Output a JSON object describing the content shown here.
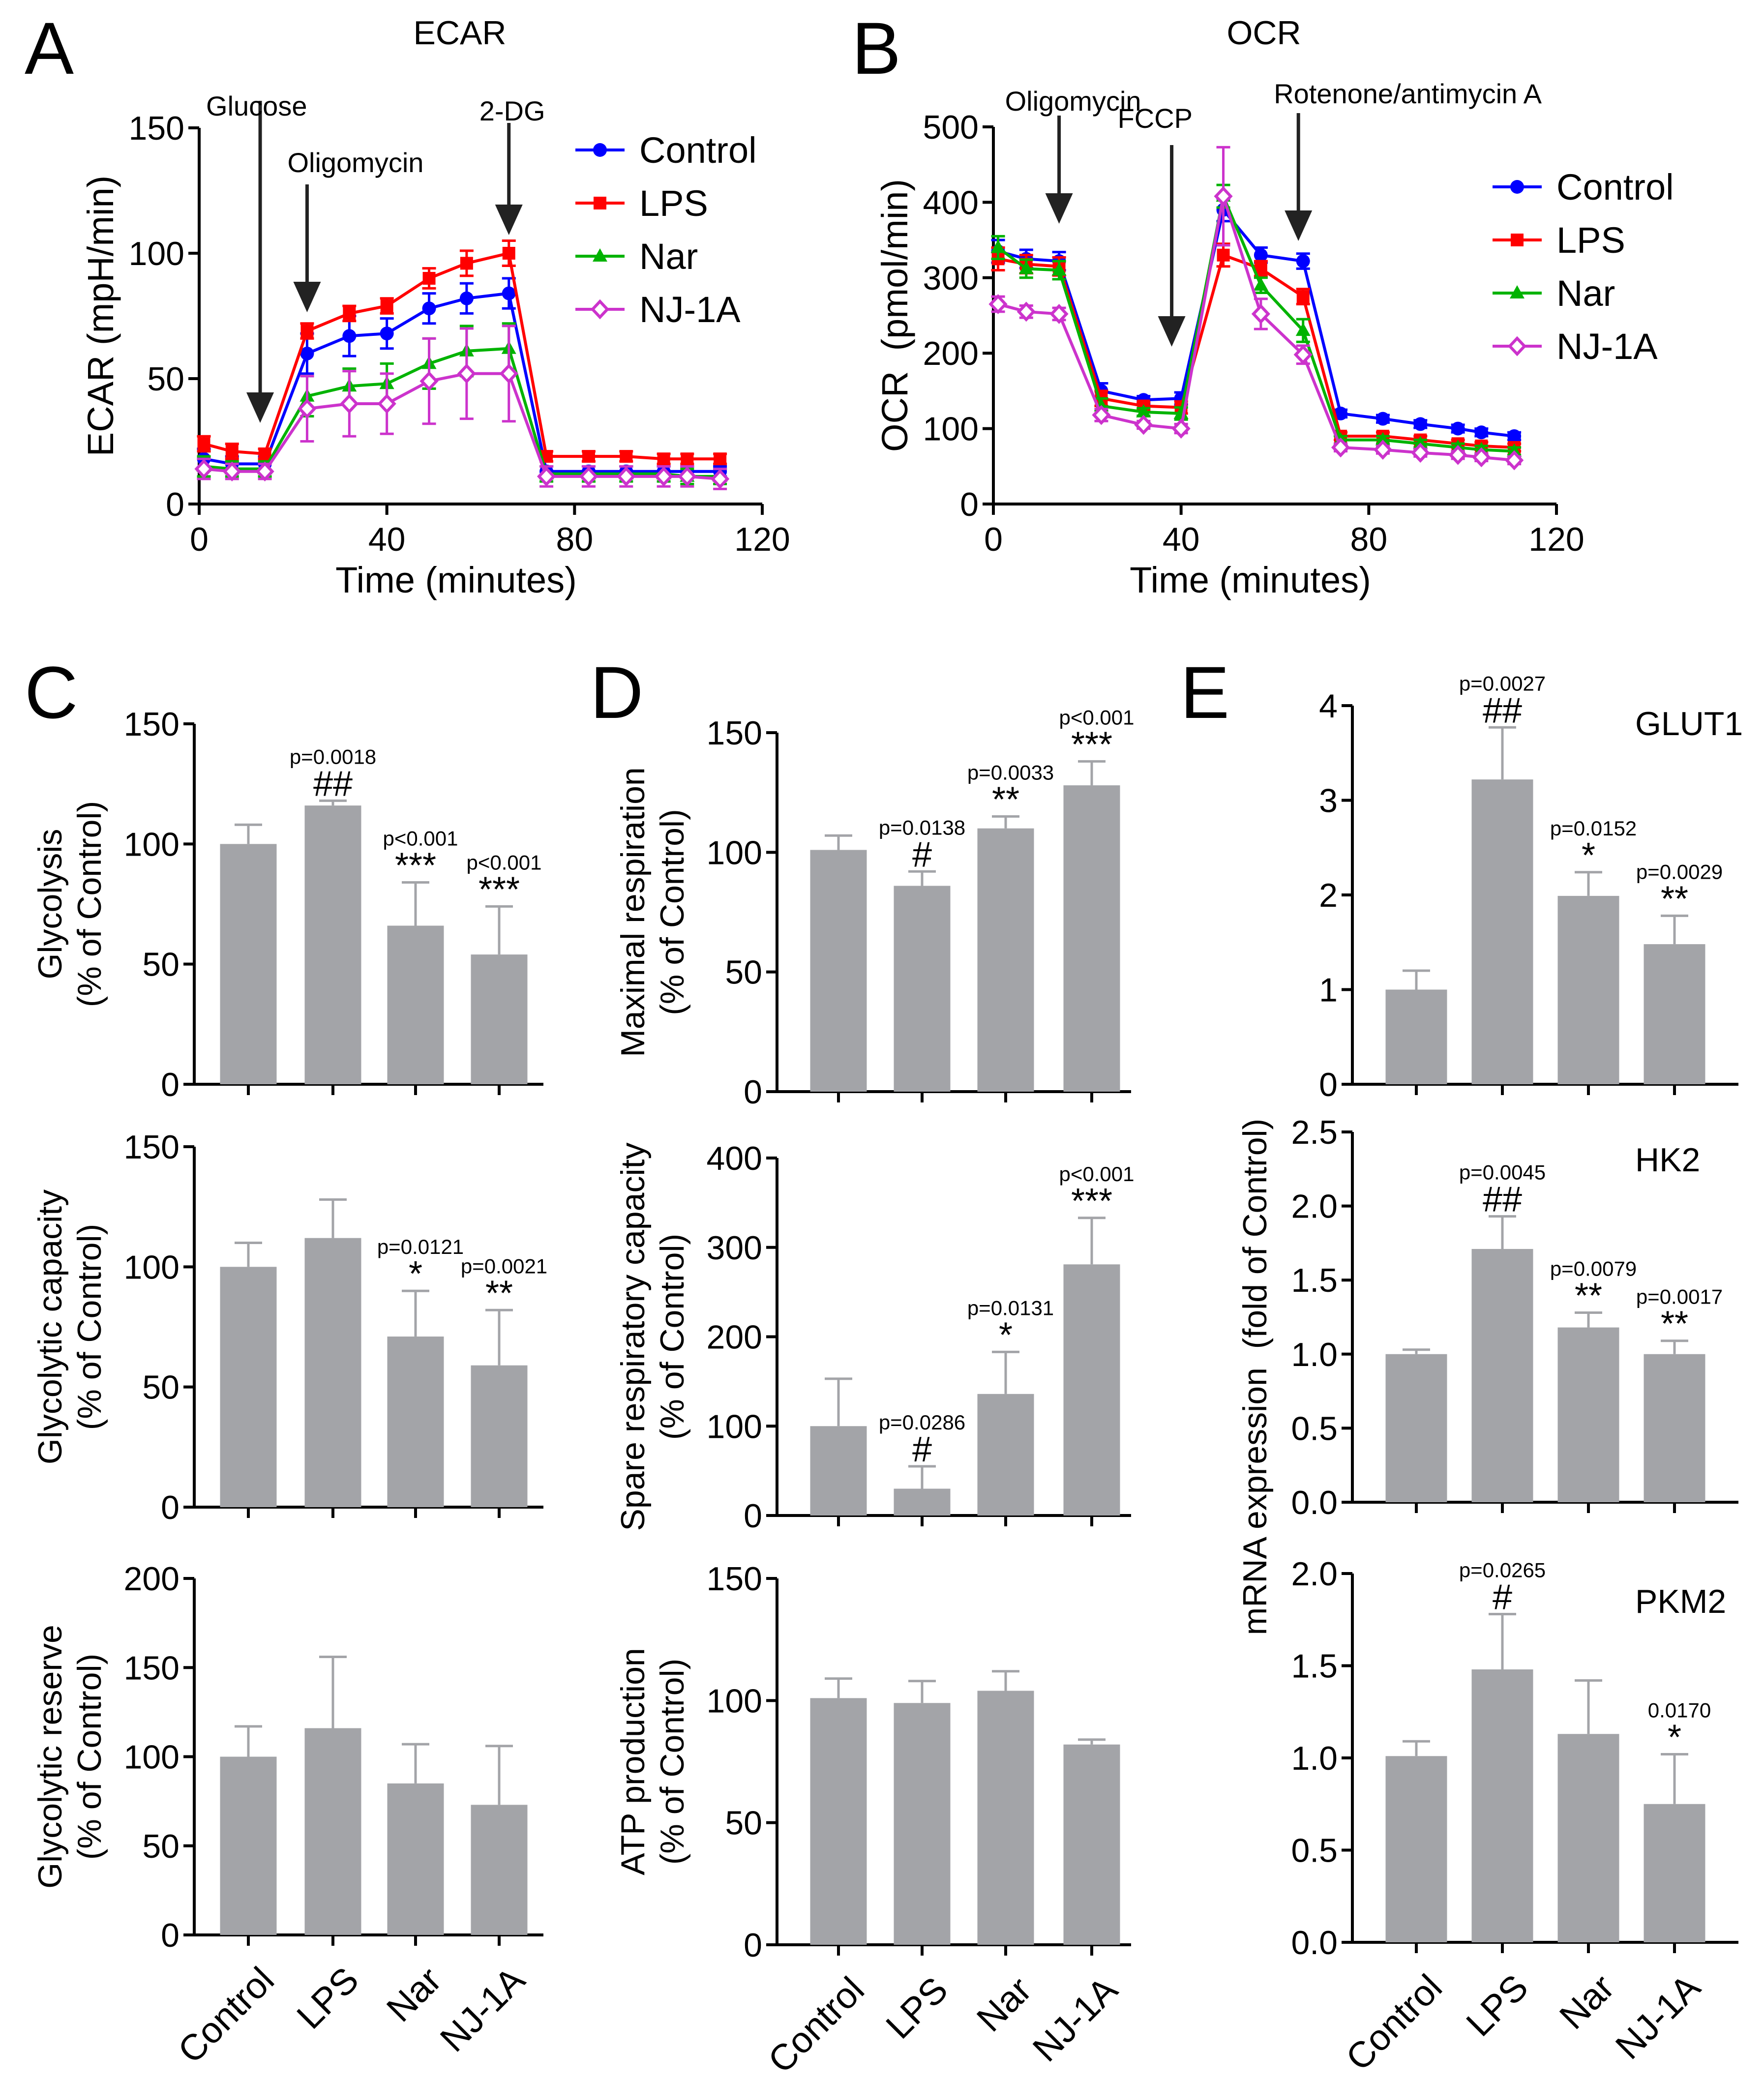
{
  "panels": {
    "A": {
      "letter": "A",
      "title": "ECAR"
    },
    "B": {
      "letter": "B",
      "title": "OCR"
    },
    "C": {
      "letter": "C"
    },
    "D": {
      "letter": "D"
    },
    "E": {
      "letter": "E"
    }
  },
  "colors": {
    "Control": "#0000ff",
    "LPS": "#ff0000",
    "Nar": "#00b300",
    "NJ-1A": "#cc33cc",
    "bar": "#a3a4a8",
    "arrow": "#222222"
  },
  "chart_data": [
    {
      "id": "A",
      "type": "line",
      "title": "ECAR",
      "xlabel": "Time (minutes)",
      "ylabel": "ECAR (mpH/min)",
      "xlim": [
        0,
        120
      ],
      "ylim": [
        0,
        150
      ],
      "xticks": [
        0,
        40,
        80,
        120
      ],
      "yticks": [
        0,
        50,
        100,
        150
      ],
      "x": [
        1,
        7,
        14,
        23,
        32,
        40,
        49,
        57,
        66,
        74,
        83,
        91,
        99,
        104,
        111
      ],
      "series": [
        {
          "name": "Control",
          "marker": "circle",
          "values": [
            18,
            16,
            16,
            60,
            67,
            68,
            78,
            82,
            84,
            13,
            13,
            13,
            13,
            13,
            13
          ],
          "errors": [
            4,
            3,
            3,
            8,
            8,
            6,
            6,
            6,
            6,
            2,
            2,
            2,
            2,
            2,
            2
          ]
        },
        {
          "name": "LPS",
          "marker": "square",
          "values": [
            24,
            21,
            20,
            69,
            76,
            79,
            90,
            96,
            100,
            19,
            19,
            19,
            18,
            18,
            18
          ],
          "errors": [
            3,
            3,
            2,
            3,
            3,
            3,
            4,
            5,
            5,
            2,
            2,
            2,
            2,
            2,
            2
          ]
        },
        {
          "name": "Nar",
          "marker": "triangle",
          "values": [
            15,
            14,
            14,
            43,
            47,
            48,
            56,
            61,
            62,
            12,
            12,
            12,
            12,
            11,
            11
          ],
          "errors": [
            4,
            3,
            3,
            8,
            7,
            8,
            10,
            10,
            10,
            3,
            3,
            3,
            3,
            3,
            3
          ]
        },
        {
          "name": "NJ-1A",
          "marker": "diamond",
          "values": [
            14,
            13,
            13,
            38,
            40,
            40,
            49,
            52,
            52,
            11,
            11,
            11,
            11,
            11,
            10
          ],
          "errors": [
            4,
            3,
            3,
            13,
            13,
            12,
            17,
            18,
            19,
            4,
            4,
            4,
            4,
            4,
            4
          ]
        }
      ],
      "annotations": [
        {
          "label": "Glucose",
          "x": 13
        },
        {
          "label": "Oligomycin",
          "x": 23
        },
        {
          "label": "2-DG",
          "x": 66
        }
      ]
    },
    {
      "id": "B",
      "type": "line",
      "title": "OCR",
      "xlabel": "Time (minutes)",
      "ylabel": "OCR  (pmol/min)",
      "xlim": [
        0,
        120
      ],
      "ylim": [
        0,
        500
      ],
      "xticks": [
        0,
        40,
        80,
        120
      ],
      "yticks": [
        0,
        100,
        200,
        300,
        400,
        500
      ],
      "x": [
        1,
        7,
        14,
        23,
        32,
        40,
        49,
        57,
        66,
        74,
        83,
        91,
        99,
        104,
        111
      ],
      "series": [
        {
          "name": "Control",
          "marker": "circle",
          "values": [
            335,
            325,
            322,
            150,
            138,
            140,
            390,
            330,
            322,
            120,
            113,
            106,
            100,
            95,
            90
          ],
          "errors": [
            15,
            12,
            12,
            10,
            5,
            8,
            15,
            10,
            10,
            5,
            5,
            5,
            5,
            5,
            5
          ]
        },
        {
          "name": "LPS",
          "marker": "square",
          "values": [
            325,
            318,
            315,
            140,
            130,
            128,
            330,
            312,
            275,
            90,
            90,
            85,
            80,
            77,
            75
          ],
          "errors": [
            15,
            12,
            12,
            10,
            5,
            8,
            15,
            10,
            10,
            5,
            5,
            5,
            5,
            5,
            5
          ]
        },
        {
          "name": "Nar",
          "marker": "triangle",
          "values": [
            340,
            312,
            310,
            130,
            122,
            120,
            408,
            290,
            230,
            85,
            85,
            80,
            75,
            72,
            70
          ],
          "errors": [
            15,
            12,
            12,
            10,
            5,
            8,
            15,
            10,
            15,
            5,
            5,
            5,
            5,
            5,
            5
          ]
        },
        {
          "name": "NJ-1A",
          "marker": "diamond",
          "values": [
            265,
            255,
            252,
            118,
            105,
            100,
            408,
            252,
            198,
            75,
            72,
            68,
            65,
            62,
            58
          ],
          "errors": [
            10,
            8,
            8,
            8,
            5,
            6,
            65,
            20,
            12,
            5,
            5,
            5,
            5,
            5,
            5
          ]
        }
      ],
      "annotations": [
        {
          "label": "Oligomycin",
          "x": 14
        },
        {
          "label": "FCCP",
          "x": 38
        },
        {
          "label": "Rotenone/antimycin A",
          "x": 65
        }
      ]
    },
    {
      "id": "C1",
      "type": "bar",
      "ylabel": "Glycolysis",
      "ylabel2": "(% of Control)",
      "categories": [
        "Control",
        "LPS",
        "Nar",
        "NJ-1A"
      ],
      "ylim": [
        0,
        150
      ],
      "yticks": [
        0,
        50,
        100,
        150
      ],
      "values": [
        100,
        116,
        66,
        54
      ],
      "errors": [
        8,
        2,
        18,
        20
      ],
      "marks": [
        "",
        "##",
        "***",
        "***"
      ],
      "pvalues": [
        "",
        "p=0.0018",
        "p<0.001",
        "p<0.001"
      ]
    },
    {
      "id": "C2",
      "type": "bar",
      "ylabel": "Glycolytic capacity",
      "ylabel2": "(% of Control)",
      "categories": [
        "Control",
        "LPS",
        "Nar",
        "NJ-1A"
      ],
      "ylim": [
        0,
        150
      ],
      "yticks": [
        0,
        50,
        100,
        150
      ],
      "values": [
        100,
        112,
        71,
        59
      ],
      "errors": [
        10,
        16,
        19,
        23
      ],
      "marks": [
        "",
        "",
        "*",
        "**"
      ],
      "pvalues": [
        "",
        "",
        "p=0.0121",
        "p=0.0021"
      ]
    },
    {
      "id": "C3",
      "type": "bar",
      "ylabel": "Glycolytic reserve",
      "ylabel2": "(% of Control)",
      "categories": [
        "Control",
        "LPS",
        "Nar",
        "NJ-1A"
      ],
      "ylim": [
        0,
        200
      ],
      "yticks": [
        0,
        50,
        100,
        150,
        200
      ],
      "values": [
        100,
        116,
        85,
        73
      ],
      "errors": [
        17,
        40,
        22,
        33
      ],
      "marks": [
        "",
        "",
        "",
        ""
      ],
      "pvalues": [
        "",
        "",
        "",
        ""
      ]
    },
    {
      "id": "D1",
      "type": "bar",
      "ylabel": "Maximal respiration",
      "ylabel2": "(% of Control)",
      "categories": [
        "Control",
        "LPS",
        "Nar",
        "NJ-1A"
      ],
      "ylim": [
        0,
        150
      ],
      "yticks": [
        0,
        50,
        100,
        150
      ],
      "values": [
        101,
        86,
        110,
        128
      ],
      "errors": [
        6,
        6,
        5,
        10
      ],
      "marks": [
        "",
        "#",
        "**",
        "***"
      ],
      "pvalues": [
        "",
        "p=0.0138",
        "p=0.0033",
        "p<0.001"
      ]
    },
    {
      "id": "D2",
      "type": "bar",
      "ylabel": "Spare respiratory capacity",
      "ylabel2": "(% of Control)",
      "categories": [
        "Control",
        "LPS",
        "Nar",
        "NJ-1A"
      ],
      "ylim": [
        0,
        400
      ],
      "yticks": [
        0,
        100,
        200,
        300,
        400
      ],
      "values": [
        100,
        30,
        136,
        281
      ],
      "errors": [
        53,
        25,
        47,
        52
      ],
      "marks": [
        "",
        "#",
        "*",
        "***"
      ],
      "pvalues": [
        "",
        "p=0.0286",
        "p=0.0131",
        "p<0.001"
      ]
    },
    {
      "id": "D3",
      "type": "bar",
      "ylabel": "ATP production",
      "ylabel2": "(% of Control)",
      "categories": [
        "Control",
        "LPS",
        "Nar",
        "NJ-1A"
      ],
      "ylim": [
        0,
        150
      ],
      "yticks": [
        0,
        50,
        100,
        150
      ],
      "values": [
        101,
        99,
        104,
        82
      ],
      "errors": [
        8,
        9,
        8,
        2
      ],
      "marks": [
        "",
        "",
        "",
        ""
      ],
      "pvalues": [
        "",
        "",
        "",
        ""
      ]
    },
    {
      "id": "E1",
      "type": "bar",
      "gene": "GLUT1",
      "categories": [
        "Control",
        "LPS",
        "Nar",
        "NJ-1A"
      ],
      "ylim": [
        0,
        4
      ],
      "yticks": [
        0,
        1,
        2,
        3,
        4
      ],
      "values": [
        1.0,
        3.22,
        1.99,
        1.48
      ],
      "errors": [
        0.2,
        0.55,
        0.25,
        0.3
      ],
      "marks": [
        "",
        "##",
        "*",
        "**"
      ],
      "pvalues": [
        "",
        "p=0.0027",
        "p=0.0152",
        "p=0.0029"
      ]
    },
    {
      "id": "E2",
      "type": "bar",
      "gene": "HK2",
      "categories": [
        "Control",
        "LPS",
        "Nar",
        "NJ-1A"
      ],
      "ylim": [
        0,
        2.5
      ],
      "yticks": [
        0,
        0.5,
        1.0,
        1.5,
        2.0,
        2.5
      ],
      "values": [
        1.0,
        1.71,
        1.18,
        1.0
      ],
      "errors": [
        0.03,
        0.22,
        0.1,
        0.09
      ],
      "marks": [
        "",
        "##",
        "**",
        "**"
      ],
      "pvalues": [
        "",
        "p=0.0045",
        "p=0.0079",
        "p=0.0017"
      ]
    },
    {
      "id": "E3",
      "type": "bar",
      "gene": "PKM2",
      "categories": [
        "Control",
        "LPS",
        "Nar",
        "NJ-1A"
      ],
      "ylim": [
        0,
        2.0
      ],
      "yticks": [
        0,
        0.5,
        1.0,
        1.5,
        2.0
      ],
      "values": [
        1.01,
        1.48,
        1.13,
        0.75
      ],
      "errors": [
        0.08,
        0.3,
        0.29,
        0.27
      ],
      "marks": [
        "",
        "#",
        "",
        "*"
      ],
      "pvalues": [
        "",
        "p=0.0265",
        "",
        "0.0170"
      ]
    }
  ],
  "e_ylabel": "mRNA expression  (fold of Control)"
}
